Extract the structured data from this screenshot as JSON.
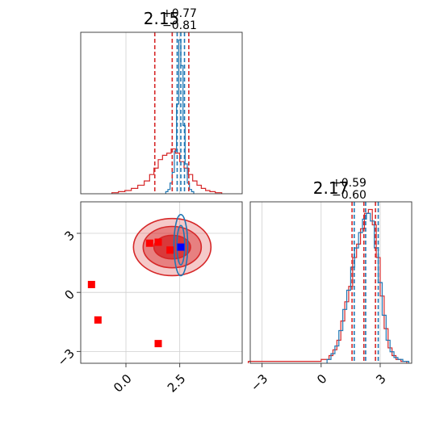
{
  "chart_data": {
    "type": "corner",
    "colors": {
      "series_a": "#d62728",
      "series_b": "#1f77b4",
      "marker_red": "#ff0000",
      "marker_blue": "#0000ff",
      "grid": "#cfcfcf",
      "frame": "#333333"
    },
    "grid": true,
    "axes": {
      "param1": {
        "range": [
          -2.1,
          5.4
        ],
        "ticks": [
          0.0,
          2.5
        ],
        "tick_labels": [
          "0.0",
          "2.5"
        ]
      },
      "param2": {
        "range": [
          -3.6,
          4.6
        ],
        "ticks": [
          -3,
          0,
          3
        ],
        "tick_labels": [
          "−3",
          "0",
          "3"
        ]
      }
    },
    "panels": [
      {
        "id": "hist_param1",
        "kind": "histogram",
        "title": {
          "main": "2.15",
          "plus": "+0.77",
          "minus": "−0.81"
        },
        "series": [
          {
            "color_key": "series_a",
            "bins": [
              [
                -0.5,
                0.005
              ],
              [
                -0.2,
                0.01
              ],
              [
                0.1,
                0.015
              ],
              [
                0.4,
                0.025
              ],
              [
                0.7,
                0.04
              ],
              [
                1.0,
                0.06
              ],
              [
                1.2,
                0.09
              ],
              [
                1.4,
                0.12
              ],
              [
                1.6,
                0.16
              ],
              [
                1.8,
                0.18
              ],
              [
                2.0,
                0.19
              ],
              [
                2.2,
                0.21
              ],
              [
                2.4,
                0.19
              ],
              [
                2.6,
                0.15
              ],
              [
                2.8,
                0.12
              ],
              [
                3.0,
                0.09
              ],
              [
                3.2,
                0.06
              ],
              [
                3.4,
                0.04
              ],
              [
                3.6,
                0.025
              ],
              [
                3.8,
                0.015
              ],
              [
                4.0,
                0.01
              ],
              [
                4.3,
                0.005
              ]
            ],
            "quantiles": [
              1.34,
              2.15,
              2.92
            ]
          },
          {
            "color_key": "series_b",
            "bins": [
              [
                1.9,
                0.01
              ],
              [
                2.0,
                0.02
              ],
              [
                2.1,
                0.05
              ],
              [
                2.2,
                0.1
              ],
              [
                2.3,
                0.2
              ],
              [
                2.4,
                0.42
              ],
              [
                2.5,
                0.72
              ],
              [
                2.6,
                0.6
              ],
              [
                2.7,
                0.32
              ],
              [
                2.8,
                0.14
              ],
              [
                2.9,
                0.05
              ],
              [
                3.0,
                0.02
              ],
              [
                3.1,
                0.01
              ]
            ],
            "quantiles": [
              2.38,
              2.55,
              2.72
            ]
          }
        ]
      },
      {
        "id": "hist_param2",
        "kind": "histogram",
        "title": {
          "main": "2.17",
          "plus": "+0.59",
          "minus": "−0.60"
        },
        "series": [
          {
            "color_key": "series_a",
            "bins": [
              [
                -3.4,
                0.01
              ],
              [
                -2.8,
                0.01
              ],
              [
                -2.0,
                0.01
              ],
              [
                -1.0,
                0.01
              ],
              [
                -0.3,
                0.01
              ],
              [
                0.3,
                0.02
              ],
              [
                0.5,
                0.04
              ],
              [
                0.7,
                0.07
              ],
              [
                0.9,
                0.12
              ],
              [
                1.1,
                0.22
              ],
              [
                1.3,
                0.32
              ],
              [
                1.5,
                0.4
              ],
              [
                1.7,
                0.55
              ],
              [
                1.9,
                0.62
              ],
              [
                2.1,
                0.7
              ],
              [
                2.3,
                0.78
              ],
              [
                2.5,
                0.8
              ],
              [
                2.7,
                0.72
              ],
              [
                2.9,
                0.55
              ],
              [
                3.1,
                0.35
              ],
              [
                3.3,
                0.18
              ],
              [
                3.5,
                0.08
              ],
              [
                3.7,
                0.04
              ],
              [
                3.9,
                0.02
              ],
              [
                4.2,
                0.01
              ]
            ],
            "quantiles": [
              1.57,
              2.17,
              2.76
            ]
          },
          {
            "color_key": "series_b",
            "bins": [
              [
                0.4,
                0.02
              ],
              [
                0.6,
                0.05
              ],
              [
                0.8,
                0.09
              ],
              [
                1.0,
                0.17
              ],
              [
                1.2,
                0.28
              ],
              [
                1.4,
                0.38
              ],
              [
                1.6,
                0.5
              ],
              [
                1.8,
                0.6
              ],
              [
                2.0,
                0.68
              ],
              [
                2.2,
                0.75
              ],
              [
                2.4,
                0.78
              ],
              [
                2.6,
                0.74
              ],
              [
                2.8,
                0.6
              ],
              [
                3.0,
                0.42
              ],
              [
                3.2,
                0.25
              ],
              [
                3.4,
                0.12
              ],
              [
                3.6,
                0.06
              ],
              [
                3.8,
                0.03
              ],
              [
                4.0,
                0.02
              ],
              [
                4.3,
                0.01
              ]
            ],
            "quantiles": [
              1.68,
              2.26,
              2.9
            ]
          }
        ]
      },
      {
        "id": "joint_param1_param2",
        "kind": "2d-density",
        "series": [
          {
            "color_key": "series_a",
            "contours": [
              {
                "cx": 2.15,
                "cy": 2.3,
                "rx": 1.8,
                "ry": 1.45,
                "opacity": 0.25
              },
              {
                "cx": 2.15,
                "cy": 2.3,
                "rx": 1.35,
                "ry": 1.05,
                "opacity": 0.45
              },
              {
                "cx": 2.15,
                "cy": 2.3,
                "rx": 0.85,
                "ry": 0.6,
                "opacity": 0.8
              }
            ]
          },
          {
            "color_key": "series_b",
            "contours": [
              {
                "cx": 2.55,
                "cy": 2.4,
                "rx": 0.32,
                "ry": 1.55
              },
              {
                "cx": 2.55,
                "cy": 2.4,
                "rx": 0.18,
                "ry": 1.0
              }
            ]
          }
        ],
        "markers": [
          {
            "color_key": "marker_red",
            "points": [
              [
                -1.6,
                0.4
              ],
              [
                -1.3,
                -1.4
              ],
              [
                1.5,
                -2.6
              ],
              [
                1.1,
                2.5
              ],
              [
                1.5,
                2.55
              ],
              [
                2.05,
                2.15
              ]
            ]
          },
          {
            "color_key": "marker_blue",
            "points": [
              [
                2.55,
                2.3
              ]
            ]
          }
        ]
      }
    ]
  }
}
